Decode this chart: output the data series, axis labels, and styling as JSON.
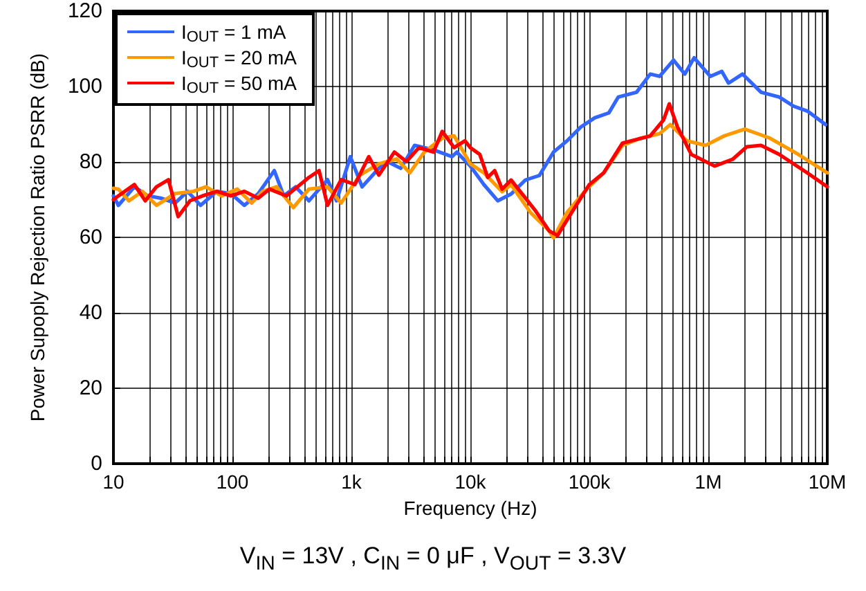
{
  "chart_data": {
    "type": "line",
    "xlabel": "Frequency (Hz)",
    "ylabel": "Power Supoply Rejection Ratio PSRR (dB)",
    "annotations": [
      "V$_{IN}$ = 13V , C$_{IN}$ = 0 μF , V$_{OUT}$ = 3.3V"
    ],
    "log": "x",
    "grid": true,
    "legend": "top left",
    "marker": "none",
    "line_style": "solid",
    "xlim": [
      10,
      10000000
    ],
    "ylim": [
      0,
      120
    ],
    "yticks": [
      0,
      20,
      40,
      60,
      80,
      100,
      120
    ],
    "xticks": [
      {
        "value": 10,
        "label": "10"
      },
      {
        "value": 20,
        "label": null
      },
      {
        "value": 30,
        "label": null
      },
      {
        "value": 40,
        "label": null
      },
      {
        "value": 50,
        "label": null
      },
      {
        "value": 60,
        "label": null
      },
      {
        "value": 70,
        "label": null
      },
      {
        "value": 80,
        "label": null
      },
      {
        "value": 90,
        "label": null
      },
      {
        "value": 100,
        "label": "100"
      },
      {
        "value": 200,
        "label": null
      },
      {
        "value": 300,
        "label": null
      },
      {
        "value": 400,
        "label": null
      },
      {
        "value": 500,
        "label": null
      },
      {
        "value": 600,
        "label": null
      },
      {
        "value": 700,
        "label": null
      },
      {
        "value": 800,
        "label": null
      },
      {
        "value": 900,
        "label": null
      },
      {
        "value": 1000,
        "label": "1k"
      },
      {
        "value": 2000,
        "label": null
      },
      {
        "value": 3000,
        "label": null
      },
      {
        "value": 4000,
        "label": null
      },
      {
        "value": 5000,
        "label": null
      },
      {
        "value": 6000,
        "label": null
      },
      {
        "value": 7000,
        "label": null
      },
      {
        "value": 8000,
        "label": null
      },
      {
        "value": 9000,
        "label": null
      },
      {
        "value": 10000,
        "label": "10k"
      },
      {
        "value": 20000,
        "label": null
      },
      {
        "value": 30000,
        "label": null
      },
      {
        "value": 40000,
        "label": null
      },
      {
        "value": 50000,
        "label": null
      },
      {
        "value": 60000,
        "label": null
      },
      {
        "value": 70000,
        "label": null
      },
      {
        "value": 80000,
        "label": null
      },
      {
        "value": 90000,
        "label": null
      },
      {
        "value": 100000,
        "label": "100k"
      },
      {
        "value": 200000,
        "label": null
      },
      {
        "value": 300000,
        "label": null
      },
      {
        "value": 400000,
        "label": null
      },
      {
        "value": 500000,
        "label": null
      },
      {
        "value": 600000,
        "label": null
      },
      {
        "value": 700000,
        "label": null
      },
      {
        "value": 800000,
        "label": null
      },
      {
        "value": 900000,
        "label": null
      },
      {
        "value": 1000000,
        "label": "1M"
      },
      {
        "value": 2000000,
        "label": null
      },
      {
        "value": 3000000,
        "label": null
      },
      {
        "value": 4000000,
        "label": null
      },
      {
        "value": 5000000,
        "label": null
      },
      {
        "value": 6000000,
        "label": null
      },
      {
        "value": 7000000,
        "label": null
      },
      {
        "value": 8000000,
        "label": null
      },
      {
        "value": 9000000,
        "label": null
      },
      {
        "value": 10000000,
        "label": "10M"
      }
    ],
    "series": [
      {
        "name": "I$_{OUT}$ = 1 mA",
        "color": "#3366ff",
        "x": [
          10,
          11,
          15,
          19.5,
          25,
          33,
          42,
          54,
          74,
          97,
          126,
          165,
          225,
          270,
          340,
          440,
          630,
          750,
          980,
          1230,
          1700,
          2000,
          2600,
          3400,
          4900,
          7000,
          7700,
          10000,
          13000,
          17000,
          22000,
          29000,
          38000,
          50000,
          65000,
          85000,
          111000,
          146000,
          175000,
          250000,
          325000,
          390000,
          510000,
          635000,
          760000,
          1040000,
          1300000,
          1480000,
          1940000,
          2770000,
          3950000,
          5200000,
          6800000,
          9700000
        ],
        "values": [
          71,
          68.5,
          73.4,
          71,
          70.4,
          69.1,
          72.2,
          68.5,
          72.2,
          71.6,
          68.5,
          71.6,
          77.7,
          71,
          73.4,
          69.7,
          75.3,
          69.7,
          81.4,
          73.4,
          78.3,
          80.1,
          78.3,
          84.4,
          83.2,
          81.4,
          82.6,
          78.9,
          74,
          69.7,
          71.5,
          75.2,
          76.4,
          82.6,
          85.6,
          89.3,
          91.7,
          93,
          97.2,
          98.5,
          103.3,
          102.7,
          107,
          103.3,
          107.6,
          102.7,
          104,
          100.9,
          103.3,
          98.5,
          97.2,
          94.8,
          93.5,
          89.9
        ]
      },
      {
        "name": "I$_{OUT}$ = 20 mA",
        "color": "#ff9900",
        "x": [
          10,
          11,
          13.5,
          17.5,
          23,
          33,
          47,
          60,
          81,
          110,
          145,
          180,
          235,
          325,
          440,
          630,
          820,
          1180,
          1700,
          2400,
          3100,
          4100,
          5800,
          7300,
          10000,
          13000,
          18500,
          22000,
          32000,
          46000,
          50000,
          65000,
          95000,
          132000,
          190000,
          270000,
          390000,
          480000,
          660000,
          950000,
          1360000,
          2030000,
          3300000,
          5700000,
          10000000
        ],
        "values": [
          73,
          72.8,
          69.7,
          72.2,
          68.5,
          71.6,
          72.2,
          73.4,
          71,
          72.8,
          69.1,
          72.2,
          73.4,
          67.9,
          72.8,
          73.4,
          69.1,
          76.5,
          79.5,
          80.8,
          77.1,
          82.6,
          86.3,
          86.9,
          79.5,
          77.1,
          72.1,
          74,
          66.6,
          61.7,
          59.9,
          66.6,
          72.8,
          77.1,
          84.4,
          86.3,
          87.5,
          89.9,
          85.6,
          84.4,
          86.9,
          88.7,
          86.3,
          82,
          77.1
        ]
      },
      {
        "name": "I$_{OUT}$ = 50 mA",
        "color": "#ff0000",
        "x": [
          10,
          11,
          15,
          18.5,
          23,
          29,
          35,
          44,
          56,
          74,
          97,
          126,
          165,
          205,
          285,
          440,
          535,
          630,
          820,
          1070,
          1400,
          1700,
          2300,
          2900,
          3700,
          4900,
          5800,
          7300,
          9000,
          10000,
          12000,
          14000,
          16000,
          18500,
          22000,
          35000,
          46000,
          54000,
          71000,
          100000,
          132000,
          190000,
          325000,
          420000,
          470000,
          550000,
          720000,
          1130000,
          1600000,
          2100000,
          2770000,
          3950000,
          6800000,
          10000000
        ],
        "values": [
          70,
          71,
          74,
          69.7,
          73.4,
          75.3,
          65.5,
          69.7,
          71,
          72.2,
          71,
          72.2,
          70.4,
          72.8,
          71,
          75.9,
          77.7,
          68.5,
          75.3,
          74,
          81.4,
          76.5,
          82.6,
          80.1,
          83.8,
          82.6,
          88.1,
          83.8,
          85.6,
          83.8,
          82,
          75.9,
          77.7,
          72.8,
          75.2,
          67.2,
          61.7,
          60.5,
          66.6,
          74,
          77.1,
          85,
          86.9,
          91.1,
          95.4,
          89.3,
          82,
          78.9,
          80.7,
          84,
          84.4,
          82,
          77.1,
          73.4
        ]
      }
    ]
  }
}
